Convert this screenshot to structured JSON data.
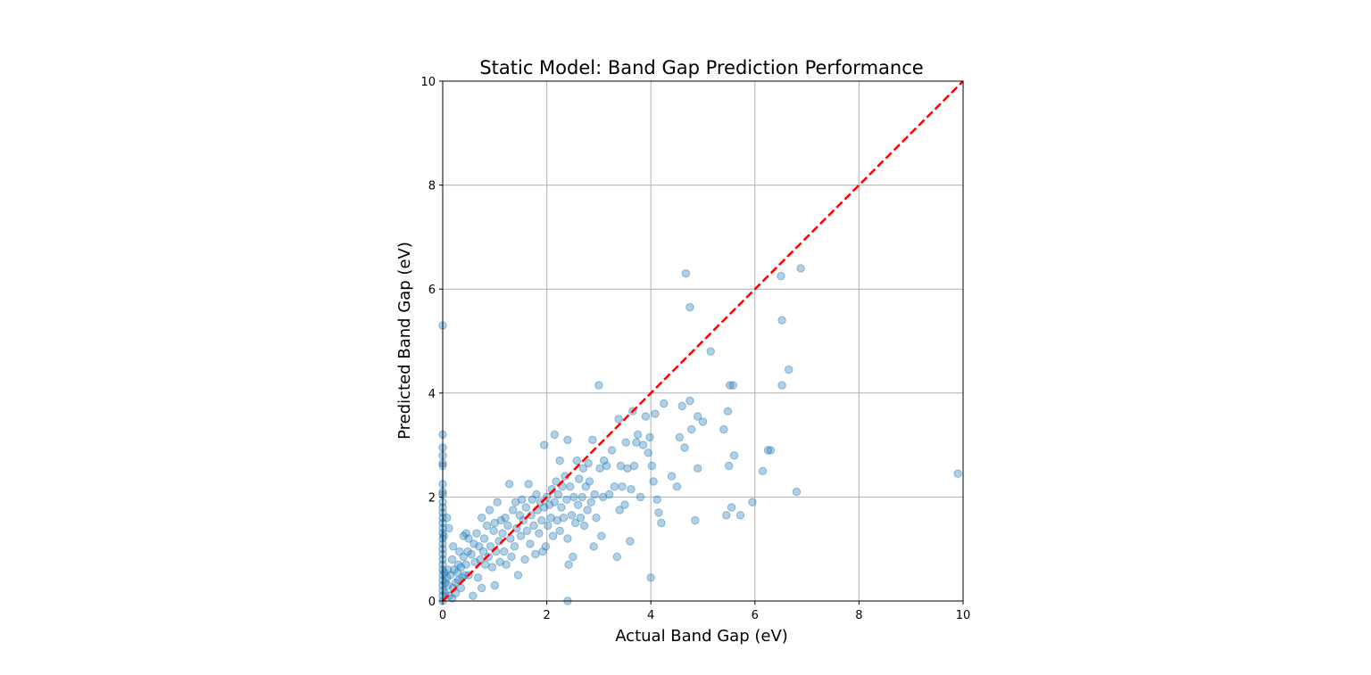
{
  "chart_data": {
    "type": "scatter",
    "title": "Static Model: Band Gap Prediction Performance",
    "xlabel": "Actual Band Gap (eV)",
    "ylabel": "Predicted Band Gap (eV)",
    "xlim": [
      0,
      10
    ],
    "ylim": [
      0,
      10
    ],
    "xticks": [
      "0",
      "2",
      "4",
      "6",
      "8",
      "10"
    ],
    "yticks": [
      "0",
      "2",
      "4",
      "6",
      "8",
      "10"
    ],
    "grid": true,
    "legend": "none",
    "marker_color": "#1f77b4",
    "marker_alpha": 0.35,
    "reference_line": {
      "from": [
        0,
        0
      ],
      "to": [
        10,
        10
      ],
      "color": "#ff0000",
      "style": "dashed"
    },
    "series": [
      {
        "points": [
          [
            0,
            5.3
          ],
          [
            0,
            3.2
          ],
          [
            0,
            2.95
          ],
          [
            0,
            2.8
          ],
          [
            0,
            2.65
          ],
          [
            0,
            2.6
          ],
          [
            0,
            2.25
          ],
          [
            0,
            2.1
          ],
          [
            0,
            2.05
          ],
          [
            0,
            1.9
          ],
          [
            0,
            1.8
          ],
          [
            0,
            1.7
          ],
          [
            0,
            1.6
          ],
          [
            0,
            1.5
          ],
          [
            0,
            1.4
          ],
          [
            0,
            1.3
          ],
          [
            0,
            1.2
          ],
          [
            0,
            1.1
          ],
          [
            0,
            1.0
          ],
          [
            0,
            0.9
          ],
          [
            0,
            0.8
          ],
          [
            0,
            0.7
          ],
          [
            0,
            0.6
          ],
          [
            0,
            0.5
          ],
          [
            0,
            0.4
          ],
          [
            0,
            0.3
          ],
          [
            0,
            0.2
          ],
          [
            0,
            0.1
          ],
          [
            0,
            0.0
          ],
          [
            0.02,
            1.25
          ],
          [
            0.03,
            0.55
          ],
          [
            0.05,
            0.35
          ],
          [
            0.05,
            0.15
          ],
          [
            0.08,
            0.45
          ],
          [
            0.08,
            1.6
          ],
          [
            0.1,
            0.3
          ],
          [
            0.1,
            0.6
          ],
          [
            0.12,
            0.1
          ],
          [
            0.12,
            1.4
          ],
          [
            0.15,
            0.5
          ],
          [
            0.18,
            0.05
          ],
          [
            0.18,
            0.8
          ],
          [
            0.2,
            0.25
          ],
          [
            0.2,
            1.05
          ],
          [
            0.22,
            0.6
          ],
          [
            0.25,
            0.35
          ],
          [
            0.25,
            0.15
          ],
          [
            0.28,
            0.55
          ],
          [
            0.3,
            0.7
          ],
          [
            0.3,
            0.4
          ],
          [
            0.32,
            0.95
          ],
          [
            0.35,
            0.25
          ],
          [
            0.35,
            0.65
          ],
          [
            0.38,
            0.45
          ],
          [
            0.4,
            1.25
          ],
          [
            0.4,
            0.85
          ],
          [
            0.42,
            0.5
          ],
          [
            0.45,
            1.3
          ],
          [
            0.45,
            0.7
          ],
          [
            0.48,
            0.95
          ],
          [
            0.5,
            0.5
          ],
          [
            0.5,
            1.2
          ],
          [
            0.55,
            0.9
          ],
          [
            0.58,
            0.1
          ],
          [
            0.6,
            1.1
          ],
          [
            0.62,
            0.75
          ],
          [
            0.65,
            1.3
          ],
          [
            0.68,
            0.45
          ],
          [
            0.7,
            1.05
          ],
          [
            0.72,
            0.8
          ],
          [
            0.75,
            1.6
          ],
          [
            0.75,
            0.25
          ],
          [
            0.78,
            0.95
          ],
          [
            0.8,
            1.2
          ],
          [
            0.82,
            0.7
          ],
          [
            0.85,
            1.45
          ],
          [
            0.88,
            0.85
          ],
          [
            0.9,
            1.75
          ],
          [
            0.92,
            1.05
          ],
          [
            0.95,
            0.65
          ],
          [
            0.98,
            1.35
          ],
          [
            1.0,
            1.5
          ],
          [
            1.0,
            0.3
          ],
          [
            1.02,
            0.95
          ],
          [
            1.05,
            1.9
          ],
          [
            1.08,
            1.15
          ],
          [
            1.1,
            0.75
          ],
          [
            1.12,
            1.55
          ],
          [
            1.15,
            1.3
          ],
          [
            1.18,
            0.95
          ],
          [
            1.2,
            1.6
          ],
          [
            1.22,
            0.7
          ],
          [
            1.25,
            1.45
          ],
          [
            1.28,
            2.25
          ],
          [
            1.3,
            1.2
          ],
          [
            1.32,
            0.85
          ],
          [
            1.35,
            1.75
          ],
          [
            1.38,
            1.05
          ],
          [
            1.4,
            1.9
          ],
          [
            1.42,
            1.4
          ],
          [
            1.45,
            0.5
          ],
          [
            1.48,
            1.65
          ],
          [
            1.5,
            1.25
          ],
          [
            1.52,
            1.95
          ],
          [
            1.55,
            1.55
          ],
          [
            1.58,
            0.8
          ],
          [
            1.6,
            1.8
          ],
          [
            1.62,
            1.35
          ],
          [
            1.65,
            2.25
          ],
          [
            1.68,
            1.1
          ],
          [
            1.7,
            1.65
          ],
          [
            1.72,
            1.95
          ],
          [
            1.75,
            1.45
          ],
          [
            1.78,
            0.9
          ],
          [
            1.8,
            2.05
          ],
          [
            1.82,
            1.75
          ],
          [
            1.85,
            1.3
          ],
          [
            1.88,
            1.9
          ],
          [
            1.9,
            1.55
          ],
          [
            1.92,
            0.95
          ],
          [
            1.95,
            3.0
          ],
          [
            1.95,
            1.8
          ],
          [
            1.98,
            1.05
          ],
          [
            2.0,
            2.0
          ],
          [
            2.02,
            1.45
          ],
          [
            2.05,
            1.85
          ],
          [
            2.08,
            1.6
          ],
          [
            2.1,
            2.15
          ],
          [
            2.12,
            1.25
          ],
          [
            2.15,
            3.2
          ],
          [
            2.15,
            1.9
          ],
          [
            2.18,
            2.3
          ],
          [
            2.2,
            1.55
          ],
          [
            2.22,
            2.05
          ],
          [
            2.25,
            2.7
          ],
          [
            2.25,
            1.35
          ],
          [
            2.28,
            1.8
          ],
          [
            2.3,
            2.2
          ],
          [
            2.32,
            1.6
          ],
          [
            2.35,
            2.4
          ],
          [
            2.38,
            1.95
          ],
          [
            2.4,
            3.1
          ],
          [
            2.4,
            1.2
          ],
          [
            2.42,
            0.7
          ],
          [
            2.45,
            2.2
          ],
          [
            2.48,
            1.65
          ],
          [
            2.5,
            0.85
          ],
          [
            2.52,
            2.0
          ],
          [
            2.55,
            1.5
          ],
          [
            2.58,
            2.7
          ],
          [
            2.6,
            1.85
          ],
          [
            2.62,
            2.35
          ],
          [
            2.65,
            1.6
          ],
          [
            2.68,
            2.0
          ],
          [
            2.7,
            2.55
          ],
          [
            2.72,
            1.45
          ],
          [
            2.75,
            2.2
          ],
          [
            2.78,
            1.75
          ],
          [
            2.8,
            2.65
          ],
          [
            2.82,
            2.3
          ],
          [
            2.85,
            1.9
          ],
          [
            2.88,
            3.1
          ],
          [
            2.9,
            1.05
          ],
          [
            2.92,
            2.05
          ],
          [
            2.95,
            1.6
          ],
          [
            3.0,
            4.15
          ],
          [
            3.02,
            2.55
          ],
          [
            3.05,
            1.25
          ],
          [
            3.08,
            2.0
          ],
          [
            3.1,
            2.7
          ],
          [
            3.15,
            2.6
          ],
          [
            3.2,
            2.05
          ],
          [
            3.25,
            2.9
          ],
          [
            3.3,
            2.2
          ],
          [
            3.35,
            0.85
          ],
          [
            3.38,
            3.5
          ],
          [
            3.4,
            1.75
          ],
          [
            3.42,
            2.6
          ],
          [
            3.45,
            2.2
          ],
          [
            3.5,
            1.85
          ],
          [
            3.52,
            3.05
          ],
          [
            3.55,
            2.55
          ],
          [
            3.6,
            1.15
          ],
          [
            3.62,
            2.15
          ],
          [
            3.65,
            3.65
          ],
          [
            3.68,
            2.6
          ],
          [
            3.72,
            3.05
          ],
          [
            3.75,
            3.2
          ],
          [
            3.8,
            2.0
          ],
          [
            3.85,
            3.0
          ],
          [
            3.9,
            3.55
          ],
          [
            3.95,
            2.85
          ],
          [
            3.98,
            3.15
          ],
          [
            4.0,
            0.45
          ],
          [
            4.02,
            2.6
          ],
          [
            4.05,
            2.3
          ],
          [
            4.08,
            3.6
          ],
          [
            4.12,
            1.95
          ],
          [
            4.15,
            1.7
          ],
          [
            4.2,
            1.5
          ],
          [
            4.25,
            3.8
          ],
          [
            4.4,
            2.4
          ],
          [
            4.5,
            2.2
          ],
          [
            4.55,
            3.15
          ],
          [
            4.6,
            3.75
          ],
          [
            4.65,
            2.95
          ],
          [
            4.67,
            6.3
          ],
          [
            4.75,
            5.65
          ],
          [
            4.75,
            3.85
          ],
          [
            4.78,
            3.3
          ],
          [
            4.85,
            1.55
          ],
          [
            4.9,
            2.55
          ],
          [
            4.9,
            3.55
          ],
          [
            5.0,
            3.45
          ],
          [
            5.15,
            4.8
          ],
          [
            5.4,
            3.3
          ],
          [
            5.45,
            1.65
          ],
          [
            5.48,
            3.65
          ],
          [
            5.5,
            2.6
          ],
          [
            5.52,
            4.15
          ],
          [
            5.55,
            1.8
          ],
          [
            5.58,
            4.15
          ],
          [
            5.6,
            2.8
          ],
          [
            5.72,
            1.65
          ],
          [
            5.95,
            1.9
          ],
          [
            6.15,
            2.5
          ],
          [
            6.25,
            2.9
          ],
          [
            6.3,
            2.9
          ],
          [
            6.5,
            6.25
          ],
          [
            6.52,
            5.4
          ],
          [
            6.52,
            4.15
          ],
          [
            6.65,
            4.45
          ],
          [
            6.8,
            2.1
          ],
          [
            6.88,
            6.4
          ],
          [
            9.9,
            2.45
          ],
          [
            2.4,
            0.0
          ]
        ]
      }
    ]
  }
}
